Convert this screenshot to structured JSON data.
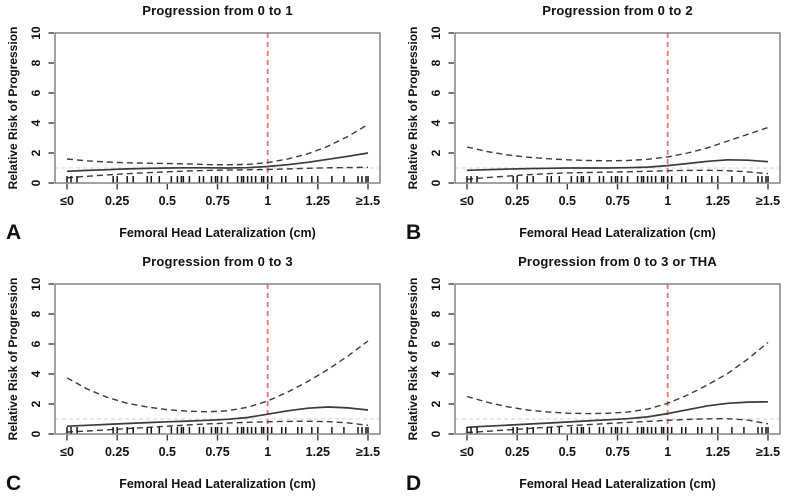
{
  "colors": {
    "curve": "#3a3a3a",
    "box": "#7a7a7a",
    "tick": "#3c3c3c",
    "text": "#111111",
    "red_reference_line": "#ef7070",
    "gray_reference_line": "#d9d9d9",
    "rug": "#141414",
    "background": "#ffffff"
  },
  "rug_x": [
    0.0,
    0.02,
    0.05,
    0.23,
    0.25,
    0.3,
    0.33,
    0.4,
    0.42,
    0.46,
    0.52,
    0.55,
    0.57,
    0.58,
    0.61,
    0.66,
    0.68,
    0.72,
    0.74,
    0.75,
    0.77,
    0.8,
    0.85,
    0.87,
    0.88,
    0.9,
    0.92,
    0.94,
    0.97,
    0.98,
    1.0,
    1.02,
    1.07,
    1.09,
    1.15,
    1.17,
    1.22,
    1.25,
    1.32,
    1.38,
    1.45,
    1.47,
    1.49,
    1.5
  ],
  "chart_data": [
    {
      "type": "line",
      "panel_label": "A",
      "title": "Progression from 0 to 1",
      "xlabel": "Femoral Head Lateralization (cm)",
      "ylabel": "Relative Risk of Progression",
      "x_tick_labels": [
        "≤0",
        "0.25",
        "0.5",
        "0.75",
        "1",
        "1.25",
        "≥1.5"
      ],
      "x_tick_values": [
        0,
        0.25,
        0.5,
        0.75,
        1,
        1.25,
        1.5
      ],
      "y_ticks": [
        0,
        2,
        4,
        6,
        8,
        10
      ],
      "xlim": [
        0,
        1.5
      ],
      "ylim": [
        0,
        10
      ],
      "reference_lines": {
        "vertical_x": 1,
        "horizontal_y": 1
      },
      "x": [
        0,
        0.1,
        0.2,
        0.3,
        0.4,
        0.5,
        0.6,
        0.7,
        0.8,
        0.9,
        1.0,
        1.1,
        1.2,
        1.3,
        1.4,
        1.5
      ],
      "series": [
        {
          "name": "relative-risk-estimate",
          "style": "solid",
          "values": [
            0.78,
            0.84,
            0.89,
            0.94,
            0.97,
            1.0,
            1.01,
            1.01,
            1.0,
            1.02,
            1.1,
            1.22,
            1.38,
            1.58,
            1.78,
            2.0
          ]
        },
        {
          "name": "upper-95ci",
          "style": "dashed",
          "values": [
            1.6,
            1.48,
            1.4,
            1.35,
            1.32,
            1.3,
            1.27,
            1.23,
            1.21,
            1.24,
            1.36,
            1.6,
            1.95,
            2.45,
            3.1,
            3.9
          ]
        },
        {
          "name": "lower-95ci",
          "style": "dashed",
          "values": [
            0.35,
            0.45,
            0.54,
            0.62,
            0.69,
            0.75,
            0.8,
            0.84,
            0.86,
            0.88,
            0.9,
            0.94,
            0.98,
            1.01,
            1.03,
            1.05
          ]
        }
      ]
    },
    {
      "type": "line",
      "panel_label": "B",
      "title": "Progression from 0 to 2",
      "xlabel": "Femoral Head Lateralization (cm)",
      "ylabel": "Relative Risk of Progression",
      "x_tick_labels": [
        "≤0",
        "0.25",
        "0.5",
        "0.75",
        "1",
        "1.25",
        "≥1.5"
      ],
      "x_tick_values": [
        0,
        0.25,
        0.5,
        0.75,
        1,
        1.25,
        1.5
      ],
      "y_ticks": [
        0,
        2,
        4,
        6,
        8,
        10
      ],
      "xlim": [
        0,
        1.5
      ],
      "ylim": [
        0,
        10
      ],
      "reference_lines": {
        "vertical_x": 1,
        "horizontal_y": 1
      },
      "x": [
        0,
        0.1,
        0.2,
        0.3,
        0.4,
        0.5,
        0.6,
        0.7,
        0.8,
        0.9,
        1.0,
        1.1,
        1.2,
        1.3,
        1.4,
        1.5
      ],
      "series": [
        {
          "name": "relative-risk-estimate",
          "style": "solid",
          "values": [
            0.85,
            0.89,
            0.93,
            0.96,
            0.98,
            1.0,
            1.0,
            1.0,
            1.02,
            1.06,
            1.16,
            1.3,
            1.45,
            1.55,
            1.52,
            1.42
          ]
        },
        {
          "name": "upper-95ci",
          "style": "dashed",
          "values": [
            2.4,
            2.1,
            1.88,
            1.72,
            1.62,
            1.55,
            1.5,
            1.48,
            1.5,
            1.58,
            1.74,
            2.0,
            2.35,
            2.8,
            3.25,
            3.7
          ]
        },
        {
          "name": "lower-95ci",
          "style": "dashed",
          "values": [
            0.25,
            0.36,
            0.46,
            0.55,
            0.62,
            0.67,
            0.7,
            0.73,
            0.75,
            0.78,
            0.82,
            0.84,
            0.85,
            0.82,
            0.74,
            0.62
          ]
        }
      ]
    },
    {
      "type": "line",
      "panel_label": "C",
      "title": "Progression from 0 to 3",
      "xlabel": "Femoral Head Lateralization (cm)",
      "ylabel": "Relative Risk of Progression",
      "x_tick_labels": [
        "≤0",
        "0.25",
        "0.5",
        "0.75",
        "1",
        "1.25",
        "≥1.5"
      ],
      "x_tick_values": [
        0,
        0.25,
        0.5,
        0.75,
        1,
        1.25,
        1.5
      ],
      "y_ticks": [
        0,
        2,
        4,
        6,
        8,
        10
      ],
      "xlim": [
        0,
        1.5
      ],
      "ylim": [
        0,
        10
      ],
      "reference_lines": {
        "vertical_x": 1,
        "horizontal_y": 1
      },
      "x": [
        0,
        0.1,
        0.2,
        0.3,
        0.4,
        0.5,
        0.6,
        0.7,
        0.8,
        0.9,
        1.0,
        1.1,
        1.2,
        1.3,
        1.4,
        1.5
      ],
      "series": [
        {
          "name": "relative-risk-estimate",
          "style": "solid",
          "values": [
            0.52,
            0.58,
            0.64,
            0.7,
            0.76,
            0.81,
            0.86,
            0.91,
            0.98,
            1.1,
            1.32,
            1.55,
            1.72,
            1.8,
            1.74,
            1.6
          ]
        },
        {
          "name": "upper-95ci",
          "style": "dashed",
          "values": [
            3.75,
            3.0,
            2.45,
            2.05,
            1.8,
            1.62,
            1.52,
            1.48,
            1.55,
            1.78,
            2.2,
            2.8,
            3.5,
            4.3,
            5.2,
            6.2
          ]
        },
        {
          "name": "lower-95ci",
          "style": "dashed",
          "values": [
            0.13,
            0.2,
            0.28,
            0.36,
            0.44,
            0.52,
            0.6,
            0.67,
            0.73,
            0.78,
            0.82,
            0.84,
            0.85,
            0.83,
            0.74,
            0.58
          ]
        }
      ]
    },
    {
      "type": "line",
      "panel_label": "D",
      "title": "Progression from 0 to 3 or THA",
      "xlabel": "Femoral Head Lateralization (cm)",
      "ylabel": "Relative Risk of Progression",
      "x_tick_labels": [
        "≤0",
        "0.25",
        "0.5",
        "0.75",
        "1",
        "1.25",
        "≥1.5"
      ],
      "x_tick_values": [
        0,
        0.25,
        0.5,
        0.75,
        1,
        1.25,
        1.5
      ],
      "y_ticks": [
        0,
        2,
        4,
        6,
        8,
        10
      ],
      "xlim": [
        0,
        1.5
      ],
      "ylim": [
        0,
        10
      ],
      "reference_lines": {
        "vertical_x": 1,
        "horizontal_y": 1
      },
      "x": [
        0,
        0.1,
        0.2,
        0.3,
        0.4,
        0.5,
        0.6,
        0.7,
        0.8,
        0.9,
        1.0,
        1.1,
        1.2,
        1.3,
        1.4,
        1.5
      ],
      "series": [
        {
          "name": "relative-risk-estimate",
          "style": "solid",
          "values": [
            0.45,
            0.52,
            0.59,
            0.66,
            0.73,
            0.8,
            0.87,
            0.95,
            1.02,
            1.14,
            1.36,
            1.62,
            1.88,
            2.05,
            2.13,
            2.15
          ]
        },
        {
          "name": "upper-95ci",
          "style": "dashed",
          "values": [
            2.5,
            2.12,
            1.82,
            1.6,
            1.47,
            1.39,
            1.36,
            1.38,
            1.46,
            1.66,
            2.05,
            2.6,
            3.28,
            4.05,
            5.0,
            6.1
          ]
        },
        {
          "name": "lower-95ci",
          "style": "dashed",
          "values": [
            0.1,
            0.18,
            0.27,
            0.36,
            0.45,
            0.54,
            0.62,
            0.7,
            0.77,
            0.84,
            0.91,
            0.97,
            1.01,
            1.02,
            0.93,
            0.68
          ]
        }
      ]
    }
  ]
}
